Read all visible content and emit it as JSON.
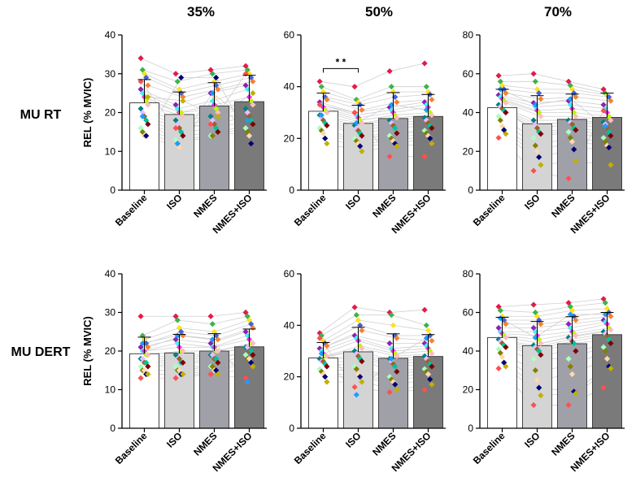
{
  "figure": {
    "column_titles": [
      "35%",
      "50%",
      "70%"
    ],
    "row_labels": [
      "MU RT",
      "MU DERT"
    ]
  },
  "colors": {
    "bar_fills": [
      "#ffffff",
      "#d4d4d4",
      "#a0a0a8",
      "#7a7a7a"
    ],
    "bar_stroke": "#333333",
    "connector_line": "#cfcfcf",
    "axis": "#000000",
    "participant_palette": [
      "#e6194b",
      "#3cb44b",
      "#ffe119",
      "#4363d8",
      "#f58231",
      "#911eb4",
      "#46f0f0",
      "#f032e6",
      "#bcf60c",
      "#fabebe",
      "#008080",
      "#e6beff",
      "#9a6324",
      "#00c2a0",
      "#800000",
      "#aaffc3",
      "#808000",
      "#ffd8b1",
      "#000075",
      "#c0b000",
      "#ff4f4f",
      "#1f9bff"
    ]
  },
  "chart_data": [
    {
      "type": "bar",
      "row": "MU RT",
      "column": "35%",
      "categories": [
        "Baseline",
        "ISO",
        "NMES",
        "NMES+ISO"
      ],
      "values": [
        22.5,
        19.5,
        21.7,
        22.8
      ],
      "sd": [
        6.0,
        5.8,
        6.0,
        6.8
      ],
      "ylabel": "REL (% MVIC)",
      "ylim": [
        0,
        40
      ],
      "yticks": [
        0,
        10,
        20,
        30,
        40
      ],
      "participants": [
        [
          34,
          31,
          30,
          29,
          27,
          26,
          25,
          24,
          23,
          22,
          21,
          20,
          19,
          18,
          17,
          16,
          15,
          14,
          14,
          24,
          28,
          19
        ],
        [
          30,
          28,
          26,
          25,
          24,
          22,
          21,
          20,
          20,
          19,
          18,
          17,
          16,
          15,
          14,
          13,
          12,
          11,
          29,
          23,
          16,
          12
        ],
        [
          31,
          30,
          28,
          27,
          26,
          25,
          23,
          22,
          21,
          20,
          19,
          18,
          17,
          16,
          15,
          14,
          14,
          24,
          29,
          19,
          17,
          25
        ],
        [
          32,
          31,
          30,
          29,
          28,
          27,
          26,
          24,
          23,
          22,
          21,
          20,
          19,
          18,
          17,
          16,
          15,
          14,
          12,
          25,
          30,
          18
        ]
      ],
      "annotations": []
    },
    {
      "type": "bar",
      "row": "MU RT",
      "column": "50%",
      "categories": [
        "Baseline",
        "ISO",
        "NMES",
        "NMES+ISO"
      ],
      "values": [
        30.5,
        25.8,
        27.7,
        28.5
      ],
      "sd": [
        7.0,
        7.0,
        10.0,
        8.5
      ],
      "ylabel": "",
      "ylim": [
        0,
        60
      ],
      "yticks": [
        0,
        20,
        40,
        60
      ],
      "participants": [
        [
          42,
          40,
          38,
          36,
          35,
          34,
          33,
          32,
          31,
          30,
          29,
          28,
          27,
          26,
          25,
          24,
          23,
          22,
          20,
          18,
          33,
          29
        ],
        [
          40,
          35,
          34,
          33,
          31,
          30,
          29,
          28,
          27,
          26,
          25,
          24,
          23,
          22,
          21,
          20,
          19,
          18,
          17,
          15,
          30,
          26
        ],
        [
          46,
          40,
          38,
          36,
          34,
          32,
          31,
          30,
          29,
          28,
          27,
          26,
          25,
          24,
          22,
          21,
          20,
          19,
          18,
          17,
          13,
          33
        ],
        [
          49,
          40,
          38,
          37,
          35,
          34,
          33,
          32,
          30,
          29,
          28,
          27,
          26,
          25,
          24,
          23,
          22,
          21,
          20,
          18,
          13,
          31
        ]
      ],
      "annotations": [
        {
          "text": "* *",
          "from_category": "Baseline",
          "to_category": "ISO",
          "y": 47
        }
      ]
    },
    {
      "type": "bar",
      "row": "MU RT",
      "column": "70%",
      "categories": [
        "Baseline",
        "ISO",
        "NMES",
        "NMES+ISO"
      ],
      "values": [
        42.5,
        34.2,
        36.5,
        37.5
      ],
      "sd": [
        9.5,
        14.5,
        13.0,
        12.5
      ],
      "ylabel": "",
      "ylim": [
        0,
        80
      ],
      "yticks": [
        0,
        20,
        40,
        60,
        80
      ],
      "participants": [
        [
          59,
          56,
          54,
          52,
          50,
          49,
          48,
          47,
          46,
          45,
          44,
          43,
          42,
          41,
          40,
          38,
          36,
          33,
          31,
          29,
          27,
          52
        ],
        [
          60,
          56,
          52,
          50,
          47,
          45,
          43,
          41,
          40,
          38,
          36,
          34,
          32,
          30,
          29,
          27,
          23,
          20,
          17,
          13,
          10,
          44
        ],
        [
          56,
          54,
          52,
          50,
          48,
          46,
          44,
          42,
          40,
          38,
          36,
          35,
          34,
          32,
          31,
          30,
          27,
          25,
          21,
          15,
          6,
          47
        ],
        [
          52,
          50,
          49,
          48,
          46,
          44,
          42,
          40,
          38,
          36,
          35,
          34,
          32,
          30,
          28,
          27,
          25,
          23,
          22,
          13,
          41,
          33
        ]
      ],
      "annotations": []
    },
    {
      "type": "bar",
      "row": "MU DERT",
      "column": "35%",
      "categories": [
        "Baseline",
        "ISO",
        "NMES",
        "NMES+ISO"
      ],
      "values": [
        19.3,
        19.5,
        20.0,
        21.1
      ],
      "sd": [
        4.3,
        4.8,
        4.5,
        4.6
      ],
      "ylabel": "REL (% MVIC)",
      "ylim": [
        0,
        40
      ],
      "yticks": [
        0,
        10,
        20,
        30,
        40
      ],
      "participants": [
        [
          29,
          24,
          23,
          22,
          21,
          21,
          20,
          20,
          19,
          19,
          18,
          18,
          17,
          17,
          16,
          16,
          15,
          15,
          14,
          14,
          13,
          22
        ],
        [
          29,
          28,
          26,
          25,
          24,
          23,
          22,
          21,
          20,
          20,
          19,
          18,
          18,
          17,
          17,
          16,
          15,
          15,
          14,
          14,
          13,
          24
        ],
        [
          29,
          27,
          25,
          24,
          23,
          22,
          21,
          21,
          20,
          20,
          19,
          19,
          18,
          18,
          17,
          16,
          16,
          15,
          15,
          14,
          14,
          23
        ],
        [
          30,
          29,
          28,
          27,
          26,
          25,
          24,
          23,
          22,
          22,
          21,
          21,
          20,
          20,
          19,
          19,
          18,
          18,
          17,
          16,
          13,
          12
        ]
      ],
      "annotations": []
    },
    {
      "type": "bar",
      "row": "MU DERT",
      "column": "50%",
      "categories": [
        "Baseline",
        "ISO",
        "NMES",
        "NMES+ISO"
      ],
      "values": [
        27.3,
        29.7,
        27.2,
        27.9
      ],
      "sd": [
        6.0,
        9.5,
        9.5,
        8.5
      ],
      "ylabel": "",
      "ylim": [
        0,
        60
      ],
      "yticks": [
        0,
        20,
        40,
        60
      ],
      "participants": [
        [
          37,
          36,
          34,
          33,
          32,
          31,
          30,
          29,
          28,
          28,
          27,
          26,
          26,
          25,
          24,
          23,
          22,
          21,
          20,
          18,
          35,
          29
        ],
        [
          47,
          44,
          42,
          40,
          38,
          36,
          35,
          34,
          32,
          31,
          30,
          29,
          28,
          27,
          26,
          24,
          23,
          21,
          20,
          18,
          16,
          13
        ],
        [
          45,
          44,
          40,
          36,
          35,
          33,
          31,
          30,
          29,
          28,
          27,
          26,
          25,
          24,
          22,
          20,
          19,
          18,
          17,
          15,
          14,
          27
        ],
        [
          46,
          40,
          38,
          36,
          34,
          33,
          32,
          31,
          30,
          29,
          28,
          27,
          26,
          25,
          24,
          23,
          22,
          21,
          19,
          17,
          15,
          35
        ]
      ],
      "annotations": []
    },
    {
      "type": "bar",
      "row": "MU DERT",
      "column": "70%",
      "categories": [
        "Baseline",
        "ISO",
        "NMES",
        "NMES+ISO"
      ],
      "values": [
        47.0,
        42.8,
        43.8,
        48.5
      ],
      "sd": [
        10.5,
        12.5,
        14.0,
        11.5
      ],
      "ylabel": "",
      "ylim": [
        0,
        80
      ],
      "yticks": [
        0,
        20,
        40,
        60,
        80
      ],
      "participants": [
        [
          63,
          61,
          58,
          56,
          54,
          52,
          50,
          49,
          48,
          47,
          46,
          45,
          44,
          43,
          42,
          41,
          39,
          37,
          34,
          32,
          31,
          57
        ],
        [
          64,
          60,
          58,
          56,
          54,
          52,
          50,
          48,
          46,
          44,
          43,
          42,
          41,
          40,
          38,
          36,
          30,
          25,
          21,
          17,
          12,
          47
        ],
        [
          65,
          63,
          61,
          58,
          56,
          54,
          52,
          50,
          49,
          48,
          47,
          46,
          45,
          44,
          40,
          36,
          32,
          28,
          19,
          18,
          12,
          59
        ],
        [
          67,
          65,
          62,
          60,
          58,
          56,
          55,
          54,
          52,
          51,
          50,
          49,
          48,
          46,
          44,
          42,
          40,
          36,
          32,
          31,
          21,
          59
        ]
      ],
      "annotations": []
    }
  ]
}
